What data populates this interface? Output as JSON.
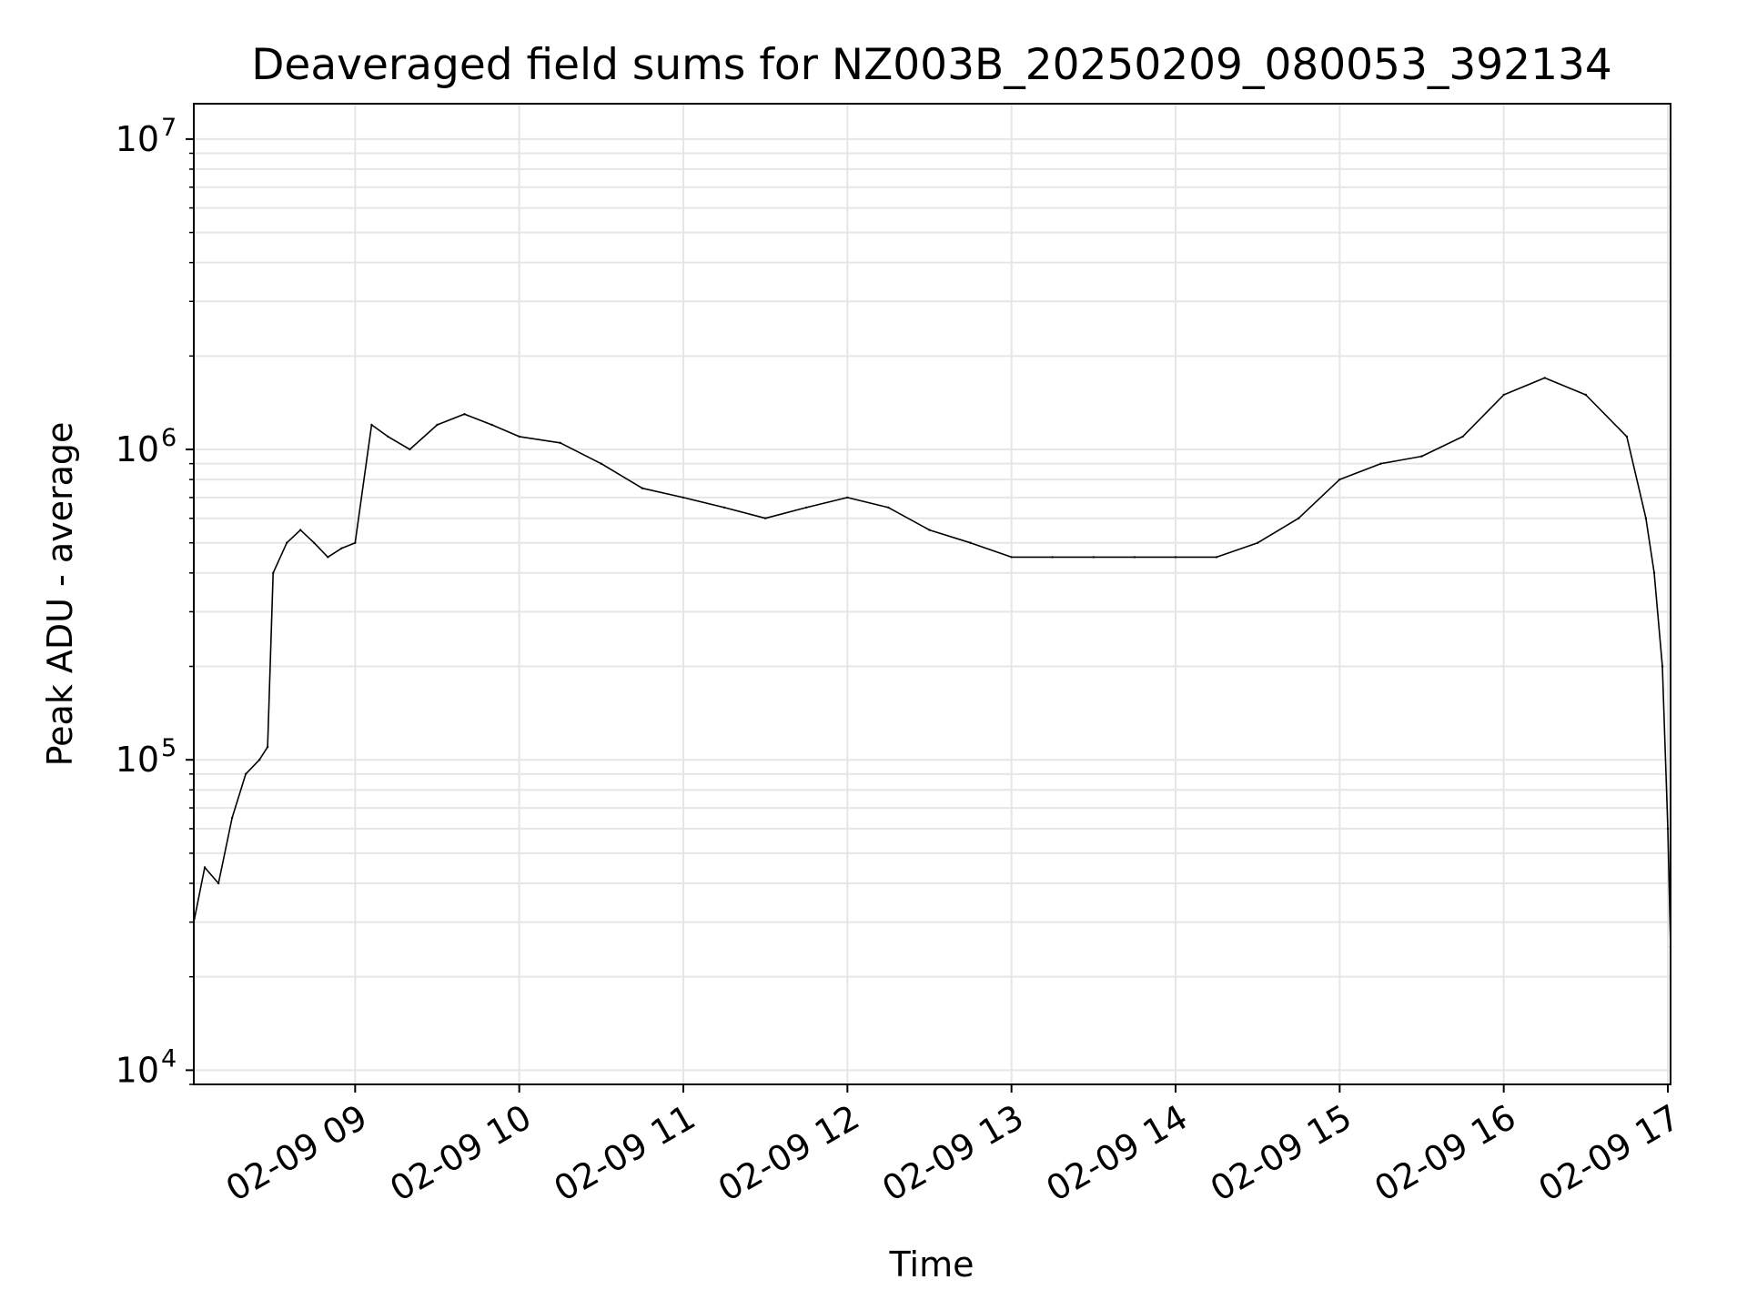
{
  "chart_data": {
    "type": "line",
    "title": "Deaveraged field sums for NZ003B_20250209_080053_392134",
    "xlabel": "Time",
    "ylabel": "Peak ADU - average",
    "yscale": "log",
    "xlim": [
      "2025-02-09 08:01",
      "2025-02-09 17:01"
    ],
    "ylim": [
      9000,
      13000000
    ],
    "x_ticks": [
      {
        "value": "2025-02-09 09:00",
        "label": "02-09 09"
      },
      {
        "value": "2025-02-09 10:00",
        "label": "02-09 10"
      },
      {
        "value": "2025-02-09 11:00",
        "label": "02-09 11"
      },
      {
        "value": "2025-02-09 12:00",
        "label": "02-09 12"
      },
      {
        "value": "2025-02-09 13:00",
        "label": "02-09 13"
      },
      {
        "value": "2025-02-09 14:00",
        "label": "02-09 14"
      },
      {
        "value": "2025-02-09 15:00",
        "label": "02-09 15"
      },
      {
        "value": "2025-02-09 16:00",
        "label": "02-09 16"
      },
      {
        "value": "2025-02-09 17:00",
        "label": "02-09 17"
      }
    ],
    "y_ticks": [
      {
        "value": 10000,
        "base": "10",
        "exp": "4"
      },
      {
        "value": 100000,
        "base": "10",
        "exp": "5"
      },
      {
        "value": 1000000,
        "base": "10",
        "exp": "6"
      },
      {
        "value": 10000000,
        "base": "10",
        "exp": "7"
      }
    ],
    "grid": true,
    "series": [
      {
        "color": "#000000",
        "x": [
          "2025-02-09 08:01",
          "2025-02-09 08:05",
          "2025-02-09 08:10",
          "2025-02-09 08:15",
          "2025-02-09 08:20",
          "2025-02-09 08:25",
          "2025-02-09 08:28",
          "2025-02-09 08:30",
          "2025-02-09 08:35",
          "2025-02-09 08:40",
          "2025-02-09 08:45",
          "2025-02-09 08:50",
          "2025-02-09 08:55",
          "2025-02-09 09:00",
          "2025-02-09 09:06",
          "2025-02-09 09:12",
          "2025-02-09 09:20",
          "2025-02-09 09:30",
          "2025-02-09 09:40",
          "2025-02-09 09:50",
          "2025-02-09 10:00",
          "2025-02-09 10:15",
          "2025-02-09 10:30",
          "2025-02-09 10:45",
          "2025-02-09 11:00",
          "2025-02-09 11:15",
          "2025-02-09 11:30",
          "2025-02-09 11:45",
          "2025-02-09 12:00",
          "2025-02-09 12:15",
          "2025-02-09 12:30",
          "2025-02-09 12:45",
          "2025-02-09 13:00",
          "2025-02-09 13:15",
          "2025-02-09 13:30",
          "2025-02-09 13:45",
          "2025-02-09 14:00",
          "2025-02-09 14:15",
          "2025-02-09 14:30",
          "2025-02-09 14:45",
          "2025-02-09 15:00",
          "2025-02-09 15:15",
          "2025-02-09 15:30",
          "2025-02-09 15:45",
          "2025-02-09 16:00",
          "2025-02-09 16:15",
          "2025-02-09 16:30",
          "2025-02-09 16:45",
          "2025-02-09 16:52",
          "2025-02-09 16:55",
          "2025-02-09 16:58",
          "2025-02-09 17:00",
          "2025-02-09 17:01"
        ],
        "y": [
          30000,
          45000,
          40000,
          65000,
          90000,
          100000,
          110000,
          400000,
          500000,
          550000,
          500000,
          450000,
          480000,
          500000,
          1200000,
          1100000,
          1000000,
          1200000,
          1300000,
          1200000,
          1100000,
          1050000,
          900000,
          750000,
          700000,
          650000,
          600000,
          650000,
          700000,
          650000,
          550000,
          500000,
          450000,
          450000,
          450000,
          450000,
          450000,
          450000,
          500000,
          600000,
          800000,
          900000,
          950000,
          1100000,
          1500000,
          1700000,
          1500000,
          1100000,
          600000,
          400000,
          200000,
          60000,
          25000
        ]
      }
    ]
  }
}
